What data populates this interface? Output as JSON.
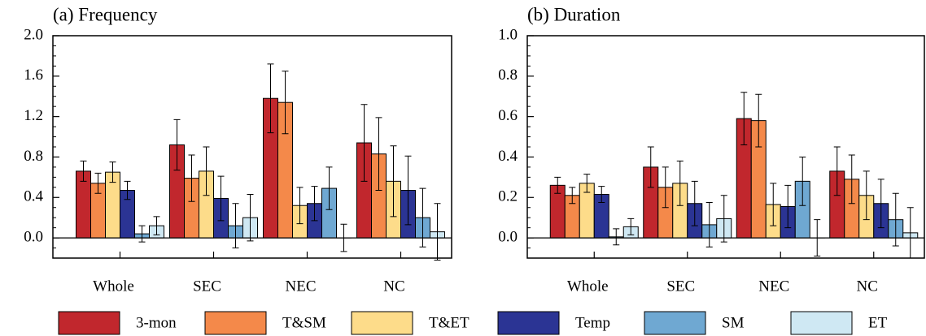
{
  "chart_data": [
    {
      "type": "bar",
      "title": "(a) Frequency",
      "categories": [
        "Whole",
        "SEC",
        "NEC",
        "NC"
      ],
      "series": [
        {
          "name": "3-mon",
          "color": "#c1272d",
          "values": [
            0.66,
            0.92,
            1.38,
            0.94
          ],
          "errors": [
            0.1,
            0.25,
            0.34,
            0.38
          ]
        },
        {
          "name": "T&SM",
          "color": "#f4894a",
          "values": [
            0.54,
            0.59,
            1.34,
            0.83
          ],
          "errors": [
            0.1,
            0.23,
            0.31,
            0.36
          ]
        },
        {
          "name": "T&ET",
          "color": "#fddc8a",
          "values": [
            0.65,
            0.66,
            0.32,
            0.56
          ],
          "errors": [
            0.1,
            0.24,
            0.18,
            0.35
          ]
        },
        {
          "name": "Temp",
          "color": "#2b3494",
          "values": [
            0.47,
            0.39,
            0.34,
            0.47
          ],
          "errors": [
            0.09,
            0.22,
            0.17,
            0.34
          ]
        },
        {
          "name": "SM",
          "color": "#6fa8d2",
          "values": [
            0.04,
            0.12,
            0.49,
            0.2
          ],
          "errors": [
            0.08,
            0.22,
            0.21,
            0.29
          ]
        },
        {
          "name": "ET",
          "color": "#cfe8f3",
          "values": [
            0.12,
            0.2,
            0,
            0.06
          ],
          "errors": [
            0.09,
            0.23,
            0.135,
            0.28
          ]
        }
      ],
      "ylim": [
        -0.2,
        2.0
      ],
      "yticks": [
        {
          "value": 0,
          "label": "0.0"
        },
        0.4,
        0.8,
        1.2,
        1.6,
        {
          "value": 2,
          "label": "2.0"
        }
      ]
    },
    {
      "type": "bar",
      "title": "(b) Duration",
      "categories": [
        "Whole",
        "SEC",
        "NEC",
        "NC"
      ],
      "series": [
        {
          "values": [
            0.26,
            0.35,
            0.59,
            0.33
          ],
          "errors": [
            0.04,
            0.1,
            0.13,
            0.12
          ]
        },
        {
          "values": [
            0.21,
            0.25,
            0.58,
            0.29
          ],
          "errors": [
            0.04,
            0.1,
            0.13,
            0.12
          ]
        },
        {
          "values": [
            0.27,
            0.27,
            0.165,
            0.21
          ],
          "errors": [
            0.045,
            0.11,
            0.105,
            0.12
          ]
        },
        {
          "values": [
            0.215,
            0.17,
            0.155,
            0.17
          ],
          "errors": [
            0.04,
            0.11,
            0.105,
            0.12
          ]
        },
        {
          "values": [
            0.005,
            0.065,
            0.28,
            0.09
          ],
          "errors": [
            0.04,
            0.11,
            0.12,
            0.13
          ]
        },
        {
          "values": [
            0.055,
            0.095,
            0,
            0.025
          ],
          "errors": [
            0.04,
            0.115,
            0.09,
            0.125
          ]
        }
      ],
      "ylim": [
        -0.1,
        1.0
      ],
      "yticks": [
        {
          "value": 0,
          "label": "0.0"
        },
        0.2,
        0.4,
        0.6,
        0.8,
        {
          "value": 1,
          "label": "1.0"
        }
      ]
    }
  ]
}
